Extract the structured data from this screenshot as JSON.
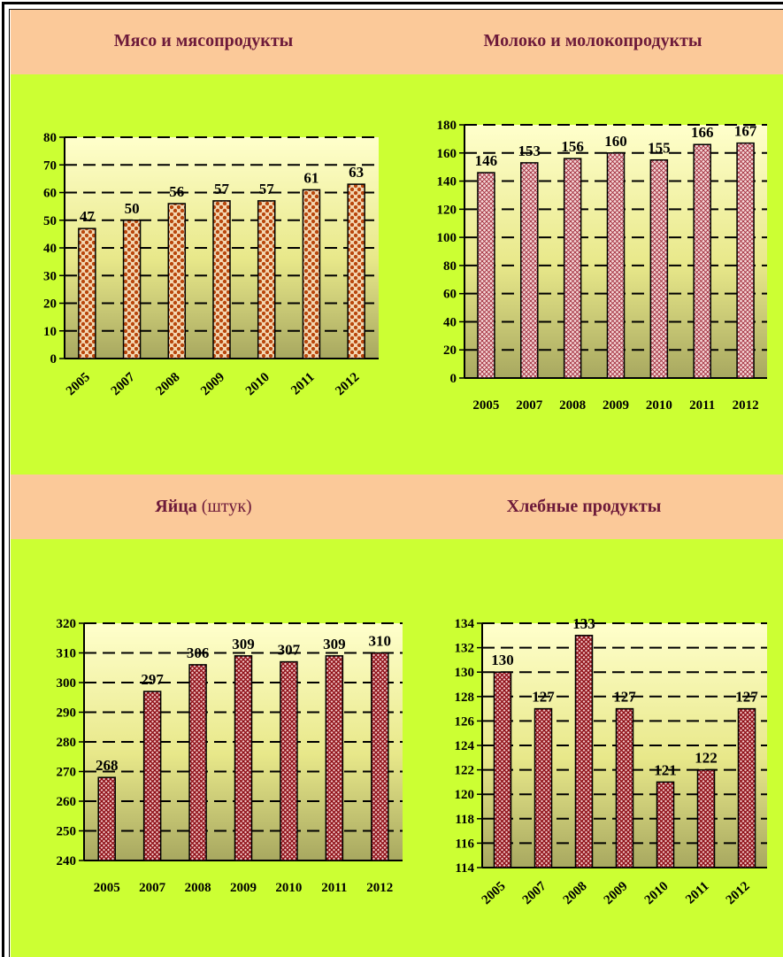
{
  "titles": {
    "meat": "Мясо и мясопродукты",
    "milk": "Молоко и молокопродукты",
    "eggs": "Яйца",
    "eggs_unit": "(штук)",
    "bread": "Хлебные продукты"
  },
  "colors": {
    "band": "#fbc999",
    "background": "#ccff33",
    "title": "#6d1a3a",
    "bar_dark": "#a0191b",
    "bar_brown": "#c45a0a",
    "bar_pink": "#e8a3a5"
  },
  "chart_data": [
    {
      "id": "meat",
      "type": "bar",
      "title": "Мясо и мясопродукты",
      "categories": [
        "2005",
        "2007",
        "2008",
        "2009",
        "2010",
        "2011",
        "2012"
      ],
      "values": [
        47,
        50,
        56,
        57,
        57,
        61,
        63
      ],
      "data_labels": [
        "47",
        "50",
        "56",
        "57",
        "57",
        "61",
        "63"
      ],
      "ylim": [
        0,
        80
      ],
      "yticks": [
        "0",
        "10",
        "20",
        "30",
        "40",
        "50",
        "60",
        "70",
        "80"
      ],
      "grid": true,
      "x_labels_rotated": true
    },
    {
      "id": "milk",
      "type": "bar",
      "title": "Молоко и молокопродукты",
      "categories": [
        "2005",
        "2007",
        "2008",
        "2009",
        "2010",
        "2011",
        "2012"
      ],
      "values": [
        146,
        153,
        156,
        160,
        155,
        166,
        167
      ],
      "data_labels": [
        "146",
        "153",
        "156",
        "160",
        "155",
        "166",
        "167"
      ],
      "ylim": [
        0,
        180
      ],
      "yticks": [
        "0",
        "20",
        "40",
        "60",
        "80",
        "100",
        "120",
        "140",
        "160",
        "180"
      ],
      "grid": true,
      "x_labels_rotated": false
    },
    {
      "id": "eggs",
      "type": "bar",
      "title": "Яйца (штук)",
      "categories": [
        "2005",
        "2007",
        "2008",
        "2009",
        "2010",
        "2011",
        "2012"
      ],
      "values": [
        268,
        297,
        306,
        309,
        307,
        309,
        310
      ],
      "data_labels": [
        "268",
        "297",
        "306",
        "309",
        "307",
        "309",
        "310"
      ],
      "ylim": [
        240,
        320
      ],
      "yticks": [
        "240",
        "250",
        "260",
        "270",
        "280",
        "290",
        "300",
        "310",
        "320"
      ],
      "grid": true,
      "x_labels_rotated": false
    },
    {
      "id": "bread",
      "type": "bar",
      "title": "Хлебные продукты",
      "categories": [
        "2005",
        "2007",
        "2008",
        "2009",
        "2010",
        "2011",
        "2012"
      ],
      "values": [
        130,
        127,
        133,
        127,
        121,
        122,
        127
      ],
      "data_labels": [
        "130",
        "127",
        "133",
        "127",
        "121",
        "122",
        "127"
      ],
      "ylim": [
        114,
        134
      ],
      "yticks": [
        "114",
        "116",
        "118",
        "120",
        "122",
        "124",
        "126",
        "128",
        "130",
        "132",
        "134"
      ],
      "grid": true,
      "x_labels_rotated": true
    }
  ]
}
